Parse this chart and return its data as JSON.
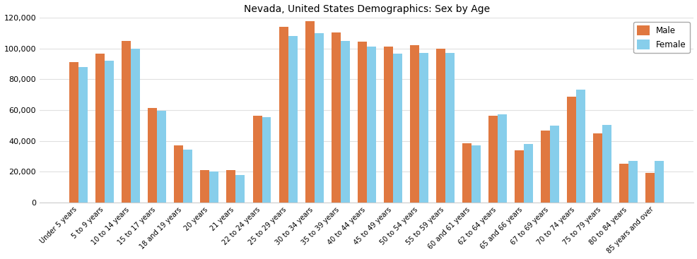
{
  "title": "Nevada, United States Demographics: Sex by Age",
  "categories": [
    "Under 5 years",
    "5 to 9 years",
    "10 to 14 years",
    "15 to 17 years",
    "18 and 19 years",
    "20 years",
    "21 years",
    "22 to 24 years",
    "25 to 29 years",
    "30 to 34 years",
    "35 to 39 years",
    "40 to 44 years",
    "45 to 49 years",
    "50 to 54 years",
    "55 to 59 years",
    "60 and 61 years",
    "62 to 64 years",
    "65 and 66 years",
    "67 to 69 years",
    "70 to 74 years",
    "75 to 79 years",
    "80 to 84 years",
    "85 years and over"
  ],
  "male": [
    91000,
    96500,
    105000,
    61500,
    37000,
    21000,
    21000,
    56500,
    114000,
    117500,
    110500,
    104500,
    101000,
    102000,
    100000,
    38500,
    56500,
    34000,
    46500,
    68500,
    45000,
    25000,
    19000
  ],
  "female": [
    88000,
    92000,
    100000,
    59500,
    34500,
    20000,
    18000,
    55500,
    108000,
    110000,
    105000,
    101000,
    96500,
    97000,
    97000,
    37000,
    57000,
    38000,
    50000,
    73000,
    50500,
    27000,
    27000
  ],
  "male_color": "#E07840",
  "female_color": "#87CEEB",
  "ylim": [
    0,
    120000
  ],
  "yticks": [
    0,
    20000,
    40000,
    60000,
    80000,
    100000,
    120000
  ],
  "background_color": "#ffffff",
  "grid_color": "#e0e0e0",
  "bar_width": 0.35,
  "title_fontsize": 10,
  "tick_fontsize": 7,
  "ytick_fontsize": 8
}
